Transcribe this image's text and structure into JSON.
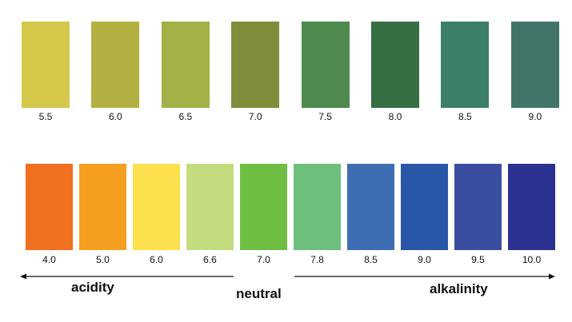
{
  "top_scale": {
    "swatches": [
      {
        "value": "5.5",
        "color": "#d4c84a"
      },
      {
        "value": "6.0",
        "color": "#b2b041"
      },
      {
        "value": "6.5",
        "color": "#a3b147"
      },
      {
        "value": "7.0",
        "color": "#7e8e3b"
      },
      {
        "value": "7.5",
        "color": "#4f8a4f"
      },
      {
        "value": "8.0",
        "color": "#356f43"
      },
      {
        "value": "8.5",
        "color": "#3b8066"
      },
      {
        "value": "9.0",
        "color": "#417569"
      }
    ]
  },
  "bottom_scale": {
    "swatches": [
      {
        "value": "4.0",
        "color": "#f07020"
      },
      {
        "value": "5.0",
        "color": "#f69e20"
      },
      {
        "value": "6.0",
        "color": "#fde04e"
      },
      {
        "value": "6.6",
        "color": "#c3dc7e"
      },
      {
        "value": "7.0",
        "color": "#6fbe44"
      },
      {
        "value": "7.8",
        "color": "#6cc07c"
      },
      {
        "value": "8.5",
        "color": "#3f6db4"
      },
      {
        "value": "9.0",
        "color": "#2956a6"
      },
      {
        "value": "9.5",
        "color": "#3a4da0"
      },
      {
        "value": "10.0",
        "color": "#2c3290"
      }
    ]
  },
  "scale_labels": {
    "acidity": "acidity",
    "neutral": "neutral",
    "alkalinity": "alkalinity"
  }
}
